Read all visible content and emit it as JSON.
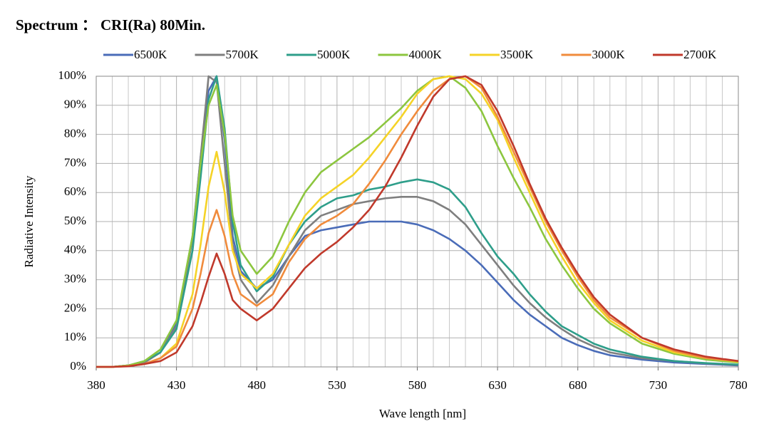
{
  "chart_data": {
    "type": "line",
    "title": "Spectrum ： CRI(Ra) 80Min.",
    "x_label": "Wave length [nm]",
    "y_label": "Radiative Intensity",
    "grid": true,
    "legend": "top",
    "x": [
      380,
      390,
      400,
      410,
      420,
      430,
      440,
      445,
      450,
      455,
      460,
      465,
      470,
      480,
      490,
      500,
      510,
      520,
      530,
      540,
      550,
      560,
      570,
      580,
      590,
      600,
      610,
      620,
      630,
      640,
      650,
      660,
      670,
      680,
      690,
      700,
      720,
      740,
      760,
      780
    ],
    "xlim": [
      380,
      780
    ],
    "xticks": [
      380,
      430,
      480,
      530,
      580,
      630,
      680,
      730,
      780
    ],
    "ylim": [
      0,
      100
    ],
    "yticks": [
      {
        "value": 0,
        "label": "0%"
      },
      {
        "value": 10,
        "label": "10%"
      },
      {
        "value": 20,
        "label": "20%"
      },
      {
        "value": 30,
        "label": "30%"
      },
      {
        "value": 40,
        "label": "40%"
      },
      {
        "value": 50,
        "label": "50%"
      },
      {
        "value": 60,
        "label": "60%"
      },
      {
        "value": 70,
        "label": "70%"
      },
      {
        "value": 80,
        "label": "80%"
      },
      {
        "value": 90,
        "label": "90%"
      },
      {
        "value": 100,
        "label": "100%"
      }
    ],
    "series": [
      {
        "name": "6500K",
        "color": "#4a6cb8",
        "values": [
          0,
          0,
          0.5,
          1.5,
          5,
          15,
          45,
          72,
          95,
          100,
          78,
          45,
          33,
          27,
          30,
          38,
          45,
          47,
          48,
          49,
          50,
          50,
          50,
          49,
          47,
          44,
          40,
          35,
          29,
          23,
          18,
          14,
          10,
          7.5,
          5.5,
          4,
          2.5,
          1.5,
          1,
          0.5
        ]
      },
      {
        "name": "5700K",
        "color": "#7f7f7f",
        "values": [
          0,
          0,
          0.5,
          1.5,
          5,
          14,
          44,
          72,
          100,
          98,
          70,
          42,
          30,
          22,
          28,
          38,
          47,
          52,
          54,
          56,
          57,
          58,
          58.5,
          58.5,
          57,
          54,
          49,
          42,
          35,
          28,
          22,
          17,
          13,
          9.5,
          7,
          5,
          3,
          2,
          1.2,
          0.7
        ]
      },
      {
        "name": "5000K",
        "color": "#2e9e8a",
        "values": [
          0,
          0,
          0.5,
          2,
          5,
          13,
          40,
          65,
          92,
          100,
          82,
          50,
          35,
          26,
          31,
          42,
          50,
          55,
          58,
          59,
          61,
          62,
          63.5,
          64.5,
          63.5,
          61,
          55,
          46,
          38,
          32,
          25,
          19,
          14,
          11,
          8,
          6,
          3.5,
          2,
          1.3,
          0.8
        ]
      },
      {
        "name": "4000K",
        "color": "#8cc63f",
        "values": [
          0,
          0,
          0.5,
          2,
          6,
          16,
          45,
          70,
          90,
          97,
          80,
          52,
          40,
          32,
          38,
          50,
          60,
          67,
          71,
          75,
          79,
          84,
          89,
          95,
          99,
          100,
          96,
          88,
          76,
          65,
          55,
          44,
          35,
          27,
          20,
          15,
          8,
          4.5,
          2.5,
          1.5
        ]
      },
      {
        "name": "3500K",
        "color": "#f5d327",
        "values": [
          0,
          0,
          0.3,
          1,
          3,
          8,
          25,
          42,
          62,
          74,
          60,
          40,
          32,
          27,
          32,
          42,
          52,
          58,
          62,
          66,
          72,
          79,
          86,
          94,
          99,
          100,
          99,
          94,
          85,
          72,
          60,
          48,
          38,
          29,
          22,
          16,
          9,
          5,
          3,
          1.8
        ]
      },
      {
        "name": "3000K",
        "color": "#f08b3c",
        "values": [
          0,
          0,
          0.3,
          1,
          3,
          7,
          20,
          32,
          46,
          54,
          45,
          32,
          25,
          21,
          25,
          36,
          44,
          49,
          52,
          56,
          63,
          71,
          80,
          88,
          95,
          99,
          100,
          96,
          86,
          74,
          62,
          50,
          40,
          31,
          23,
          17,
          10,
          5.5,
          3,
          2
        ]
      },
      {
        "name": "2700K",
        "color": "#c0392b",
        "values": [
          0,
          0,
          0.2,
          1,
          2,
          5,
          14,
          22,
          31,
          39,
          32,
          23,
          20,
          16,
          20,
          27,
          34,
          39,
          43,
          48,
          54,
          62,
          72,
          83,
          93,
          99,
          100,
          97,
          88,
          76,
          63,
          51,
          41,
          32,
          24,
          18,
          10,
          6,
          3.5,
          2
        ]
      }
    ]
  }
}
